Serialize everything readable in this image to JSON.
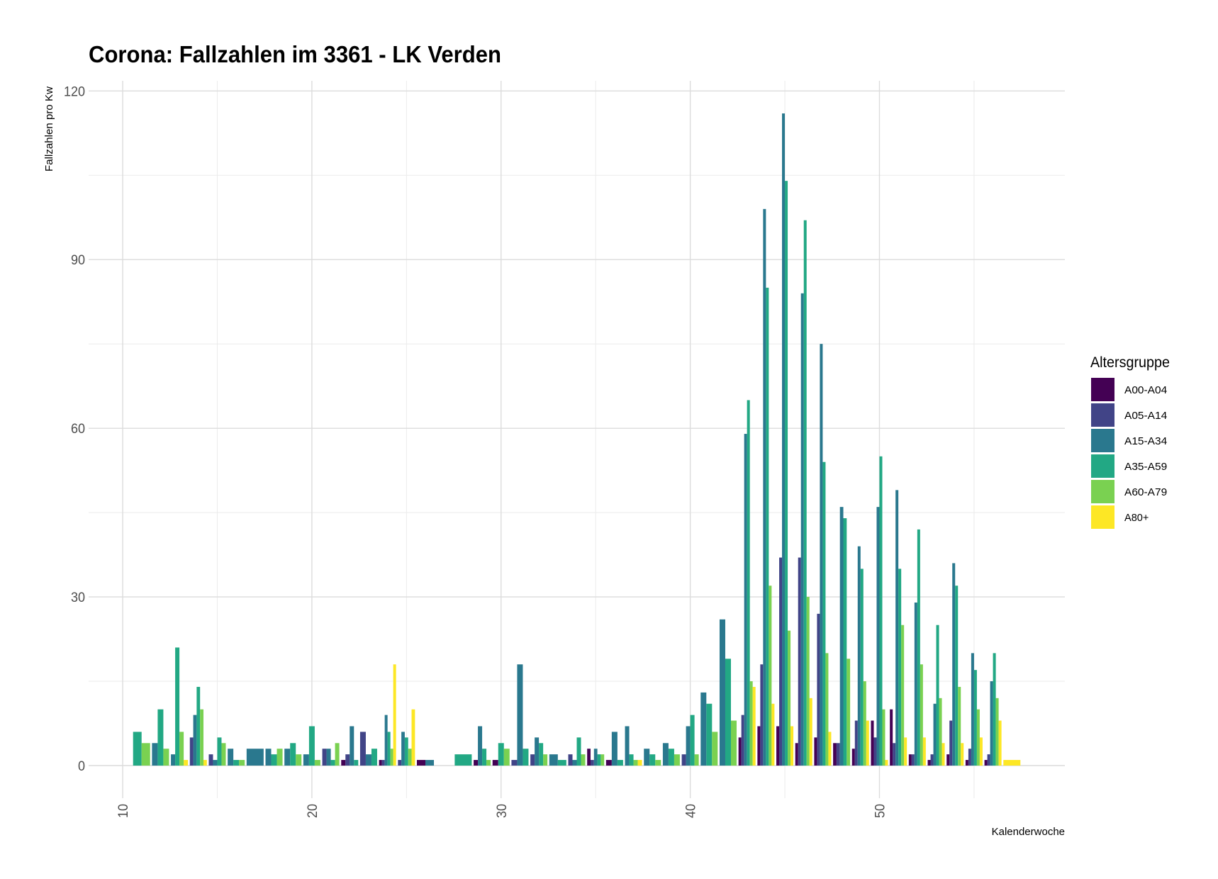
{
  "chart_data": {
    "type": "bar",
    "title": "Corona: Fallzahlen im 3361 - LK Verden",
    "xlabel": "Kalenderwoche",
    "ylabel": "Fallzahlen pro Kw",
    "xlim": [
      8.2,
      59.8
    ],
    "ylim": [
      -5.8,
      121.8
    ],
    "x_ticks": [
      10,
      20,
      30,
      40,
      50
    ],
    "x_tick_labels": [
      "10",
      "20",
      "30",
      "40",
      "50"
    ],
    "y_ticks": [
      0,
      30,
      60,
      90,
      120
    ],
    "y_tick_labels": [
      "0",
      "30",
      "60",
      "90",
      "120"
    ],
    "grid": true,
    "legend_title": "Altersgruppe",
    "legend_position": "right",
    "x": [
      11,
      12,
      13,
      14,
      15,
      16,
      17,
      18,
      19,
      20,
      21,
      22,
      23,
      24,
      25,
      26,
      27,
      28,
      29,
      30,
      31,
      32,
      33,
      34,
      35,
      36,
      37,
      38,
      39,
      40,
      41,
      42,
      43,
      44,
      45,
      46,
      47,
      48,
      49,
      50,
      51,
      52,
      53,
      54,
      55,
      56,
      57
    ],
    "series": [
      {
        "name": "A00-A04",
        "color": "#440154",
        "values": [
          null,
          null,
          null,
          null,
          null,
          null,
          null,
          null,
          null,
          null,
          null,
          1,
          null,
          1,
          null,
          1,
          null,
          null,
          1,
          1,
          null,
          null,
          null,
          null,
          3,
          1,
          null,
          null,
          null,
          null,
          null,
          null,
          5,
          7,
          7,
          4,
          5,
          4,
          3,
          8,
          10,
          2,
          1,
          2,
          1,
          1,
          null
        ]
      },
      {
        "name": "A05-A14",
        "color": "#414487",
        "values": [
          null,
          null,
          null,
          5,
          2,
          null,
          null,
          null,
          null,
          null,
          3,
          2,
          6,
          1,
          1,
          null,
          null,
          null,
          null,
          null,
          1,
          2,
          null,
          2,
          1,
          null,
          null,
          null,
          null,
          2,
          null,
          null,
          9,
          18,
          37,
          37,
          27,
          4,
          8,
          5,
          4,
          2,
          2,
          8,
          3,
          2,
          null
        ]
      },
      {
        "name": "A15-A34",
        "color": "#2a788e",
        "values": [
          null,
          4,
          2,
          9,
          1,
          3,
          3,
          3,
          3,
          2,
          3,
          7,
          2,
          9,
          6,
          1,
          null,
          null,
          7,
          null,
          18,
          5,
          2,
          1,
          3,
          6,
          7,
          3,
          4,
          7,
          13,
          26,
          59,
          99,
          116,
          84,
          75,
          46,
          39,
          46,
          49,
          29,
          11,
          36,
          20,
          15,
          null
        ]
      },
      {
        "name": "A35-A59",
        "color": "#22a884",
        "values": [
          6,
          10,
          21,
          14,
          5,
          1,
          null,
          2,
          4,
          7,
          1,
          1,
          3,
          6,
          5,
          null,
          null,
          2,
          3,
          4,
          3,
          4,
          1,
          5,
          2,
          1,
          2,
          2,
          3,
          9,
          11,
          19,
          65,
          85,
          104,
          97,
          54,
          44,
          35,
          55,
          35,
          42,
          25,
          32,
          17,
          20,
          null
        ]
      },
      {
        "name": "A60-A79",
        "color": "#7ad151",
        "values": [
          4,
          3,
          6,
          10,
          4,
          1,
          null,
          3,
          2,
          1,
          4,
          null,
          null,
          3,
          3,
          null,
          null,
          null,
          1,
          3,
          null,
          2,
          null,
          2,
          2,
          null,
          1,
          1,
          2,
          2,
          6,
          8,
          15,
          32,
          24,
          30,
          20,
          19,
          15,
          10,
          25,
          18,
          12,
          14,
          10,
          12,
          null
        ]
      },
      {
        "name": "A80+",
        "color": "#fde725",
        "values": [
          null,
          null,
          1,
          1,
          null,
          null,
          null,
          null,
          null,
          null,
          null,
          null,
          null,
          18,
          10,
          null,
          null,
          null,
          null,
          null,
          null,
          null,
          null,
          null,
          null,
          null,
          1,
          null,
          null,
          null,
          null,
          null,
          14,
          11,
          7,
          12,
          6,
          null,
          8,
          1,
          5,
          5,
          4,
          4,
          5,
          8,
          1
        ]
      }
    ]
  }
}
